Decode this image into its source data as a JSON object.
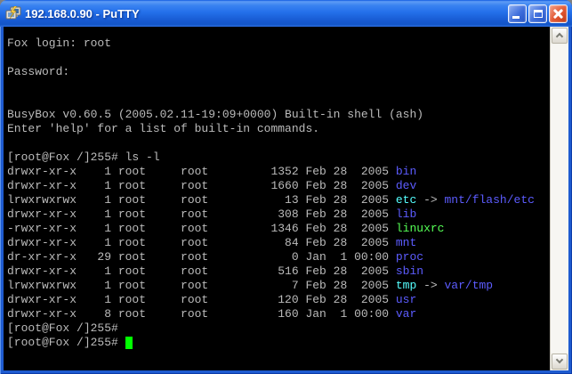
{
  "window": {
    "title": "192.168.0.90 - PuTTY"
  },
  "titlebar": {
    "buttons": [
      {
        "name": "minimize"
      },
      {
        "name": "maximize"
      },
      {
        "name": "close"
      }
    ]
  },
  "colors": {
    "fg": "#bbbbbb",
    "dir": "#5c5cff",
    "link": "#55ffff",
    "exec": "#55ff55",
    "cursor": "#00ff00",
    "term_bg": "#000000",
    "titlebar_blue": "#2470ea",
    "close_red": "#d8431f"
  },
  "terminal": {
    "lines": [
      {
        "segments": [
          {
            "t": "Fox login: root",
            "c": "fg"
          }
        ]
      },
      {
        "segments": []
      },
      {
        "segments": [
          {
            "t": "Password:",
            "c": "fg"
          }
        ]
      },
      {
        "segments": []
      },
      {
        "segments": []
      },
      {
        "segments": [
          {
            "t": "BusyBox v0.60.5 (2005.02.11-19:09+0000) Built-in shell (ash)",
            "c": "fg"
          }
        ]
      },
      {
        "segments": [
          {
            "t": "Enter 'help' for a list of built-in commands.",
            "c": "fg"
          }
        ]
      },
      {
        "segments": []
      },
      {
        "segments": [
          {
            "t": "[root@Fox /]255# ls -l",
            "c": "fg"
          }
        ]
      },
      {
        "segments": [
          {
            "t": "drwxr-xr-x    1 root     root         1352 Feb 28  2005 ",
            "c": "fg"
          },
          {
            "t": "bin",
            "c": "dir"
          }
        ]
      },
      {
        "segments": [
          {
            "t": "drwxr-xr-x    1 root     root         1660 Feb 28  2005 ",
            "c": "fg"
          },
          {
            "t": "dev",
            "c": "dir"
          }
        ]
      },
      {
        "segments": [
          {
            "t": "lrwxrwxrwx    1 root     root           13 Feb 28  2005 ",
            "c": "fg"
          },
          {
            "t": "etc",
            "c": "link"
          },
          {
            "t": " -> ",
            "c": "fg"
          },
          {
            "t": "mnt/flash/etc",
            "c": "dir"
          }
        ]
      },
      {
        "segments": [
          {
            "t": "drwxr-xr-x    1 root     root          308 Feb 28  2005 ",
            "c": "fg"
          },
          {
            "t": "lib",
            "c": "dir"
          }
        ]
      },
      {
        "segments": [
          {
            "t": "-rwxr-xr-x    1 root     root         1346 Feb 28  2005 ",
            "c": "fg"
          },
          {
            "t": "linuxrc",
            "c": "exec"
          }
        ]
      },
      {
        "segments": [
          {
            "t": "drwxr-xr-x    1 root     root           84 Feb 28  2005 ",
            "c": "fg"
          },
          {
            "t": "mnt",
            "c": "dir"
          }
        ]
      },
      {
        "segments": [
          {
            "t": "dr-xr-xr-x   29 root     root            0 Jan  1 00:00 ",
            "c": "fg"
          },
          {
            "t": "proc",
            "c": "dir"
          }
        ]
      },
      {
        "segments": [
          {
            "t": "drwxr-xr-x    1 root     root          516 Feb 28  2005 ",
            "c": "fg"
          },
          {
            "t": "sbin",
            "c": "dir"
          }
        ]
      },
      {
        "segments": [
          {
            "t": "lrwxrwxrwx    1 root     root            7 Feb 28  2005 ",
            "c": "fg"
          },
          {
            "t": "tmp",
            "c": "link"
          },
          {
            "t": " -> ",
            "c": "fg"
          },
          {
            "t": "var/tmp",
            "c": "dir"
          }
        ]
      },
      {
        "segments": [
          {
            "t": "drwxr-xr-x    1 root     root          120 Feb 28  2005 ",
            "c": "fg"
          },
          {
            "t": "usr",
            "c": "dir"
          }
        ]
      },
      {
        "segments": [
          {
            "t": "drwxr-xr-x    8 root     root          160 Jan  1 00:00 ",
            "c": "fg"
          },
          {
            "t": "var",
            "c": "dir"
          }
        ]
      },
      {
        "segments": [
          {
            "t": "[root@Fox /]255#",
            "c": "fg"
          }
        ]
      },
      {
        "segments": [
          {
            "t": "[root@Fox /]255# ",
            "c": "fg"
          },
          {
            "cursor": true
          }
        ]
      }
    ]
  }
}
